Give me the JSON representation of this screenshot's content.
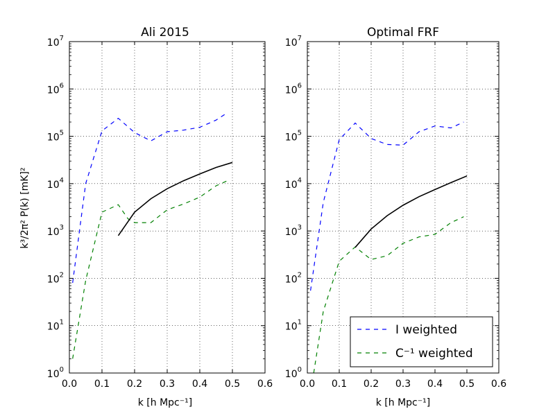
{
  "chart_data": [
    {
      "type": "line",
      "title": "Ali 2015",
      "xlabel": "k [h Mpc⁻¹]",
      "ylabel": "k³/2π² P(k) [mK]²",
      "xlim": [
        0.0,
        0.6
      ],
      "ylim": [
        1,
        10000000
      ],
      "yscale": "log",
      "grid": true,
      "x_ticks": [
        "0.0",
        "0.1",
        "0.2",
        "0.3",
        "0.4",
        "0.5",
        "0.6"
      ],
      "y_ticks": [
        {
          "base": "10",
          "exp": "0"
        },
        {
          "base": "10",
          "exp": "1"
        },
        {
          "base": "10",
          "exp": "2"
        },
        {
          "base": "10",
          "exp": "3"
        },
        {
          "base": "10",
          "exp": "4"
        },
        {
          "base": "10",
          "exp": "5"
        },
        {
          "base": "10",
          "exp": "6"
        },
        {
          "base": "10",
          "exp": "7"
        }
      ],
      "series": [
        {
          "name": "I weighted",
          "color": "#0000ff",
          "style": "dashed",
          "x": [
            0.01,
            0.05,
            0.1,
            0.15,
            0.2,
            0.25,
            0.3,
            0.35,
            0.4,
            0.45,
            0.48
          ],
          "y": [
            80,
            10000,
            130000,
            240000,
            120000,
            80000,
            125000,
            135000,
            155000,
            220000,
            300000
          ]
        },
        {
          "name": "C⁻¹ weighted",
          "color": "#008000",
          "style": "dashed",
          "x": [
            0.01,
            0.05,
            0.1,
            0.15,
            0.18,
            0.2,
            0.25,
            0.3,
            0.35,
            0.4,
            0.45,
            0.49
          ],
          "y": [
            2,
            90,
            2500,
            3600,
            1800,
            1500,
            1500,
            2800,
            3700,
            5200,
            9000,
            12000
          ]
        },
        {
          "name": "",
          "color": "#000000",
          "style": "solid",
          "x": [
            0.15,
            0.2,
            0.25,
            0.3,
            0.35,
            0.4,
            0.45,
            0.5
          ],
          "y": [
            800,
            2500,
            4800,
            7800,
            11500,
            16000,
            22000,
            28000
          ]
        }
      ]
    },
    {
      "type": "line",
      "title": "Optimal FRF",
      "xlabel": "k [h Mpc⁻¹]",
      "xlim": [
        0.0,
        0.6
      ],
      "ylim": [
        1,
        10000000
      ],
      "yscale": "log",
      "grid": true,
      "legend": "bottom-right",
      "x_ticks": [
        "0.0",
        "0.1",
        "0.2",
        "0.3",
        "0.4",
        "0.5",
        "0.6"
      ],
      "y_ticks": [
        {
          "base": "10",
          "exp": "0"
        },
        {
          "base": "10",
          "exp": "1"
        },
        {
          "base": "10",
          "exp": "2"
        },
        {
          "base": "10",
          "exp": "3"
        },
        {
          "base": "10",
          "exp": "4"
        },
        {
          "base": "10",
          "exp": "5"
        },
        {
          "base": "10",
          "exp": "6"
        },
        {
          "base": "10",
          "exp": "7"
        }
      ],
      "series": [
        {
          "name": "I weighted",
          "color": "#0000ff",
          "style": "dashed",
          "x": [
            0.01,
            0.05,
            0.1,
            0.15,
            0.2,
            0.25,
            0.3,
            0.35,
            0.4,
            0.45,
            0.49
          ],
          "y": [
            55,
            4000,
            85000,
            190000,
            90000,
            67000,
            65000,
            125000,
            165000,
            150000,
            200000
          ]
        },
        {
          "name": "C⁻¹ weighted",
          "color": "#008000",
          "style": "dashed",
          "x": [
            0.02,
            0.05,
            0.1,
            0.15,
            0.2,
            0.25,
            0.3,
            0.35,
            0.4,
            0.45,
            0.49
          ],
          "y": [
            1,
            20,
            230,
            460,
            250,
            300,
            550,
            750,
            850,
            1500,
            2000
          ]
        },
        {
          "name": "",
          "color": "#000000",
          "style": "solid",
          "x": [
            0.15,
            0.2,
            0.25,
            0.3,
            0.35,
            0.4,
            0.45,
            0.5
          ],
          "y": [
            450,
            1100,
            2100,
            3500,
            5300,
            7500,
            10500,
            14500
          ]
        }
      ]
    }
  ]
}
